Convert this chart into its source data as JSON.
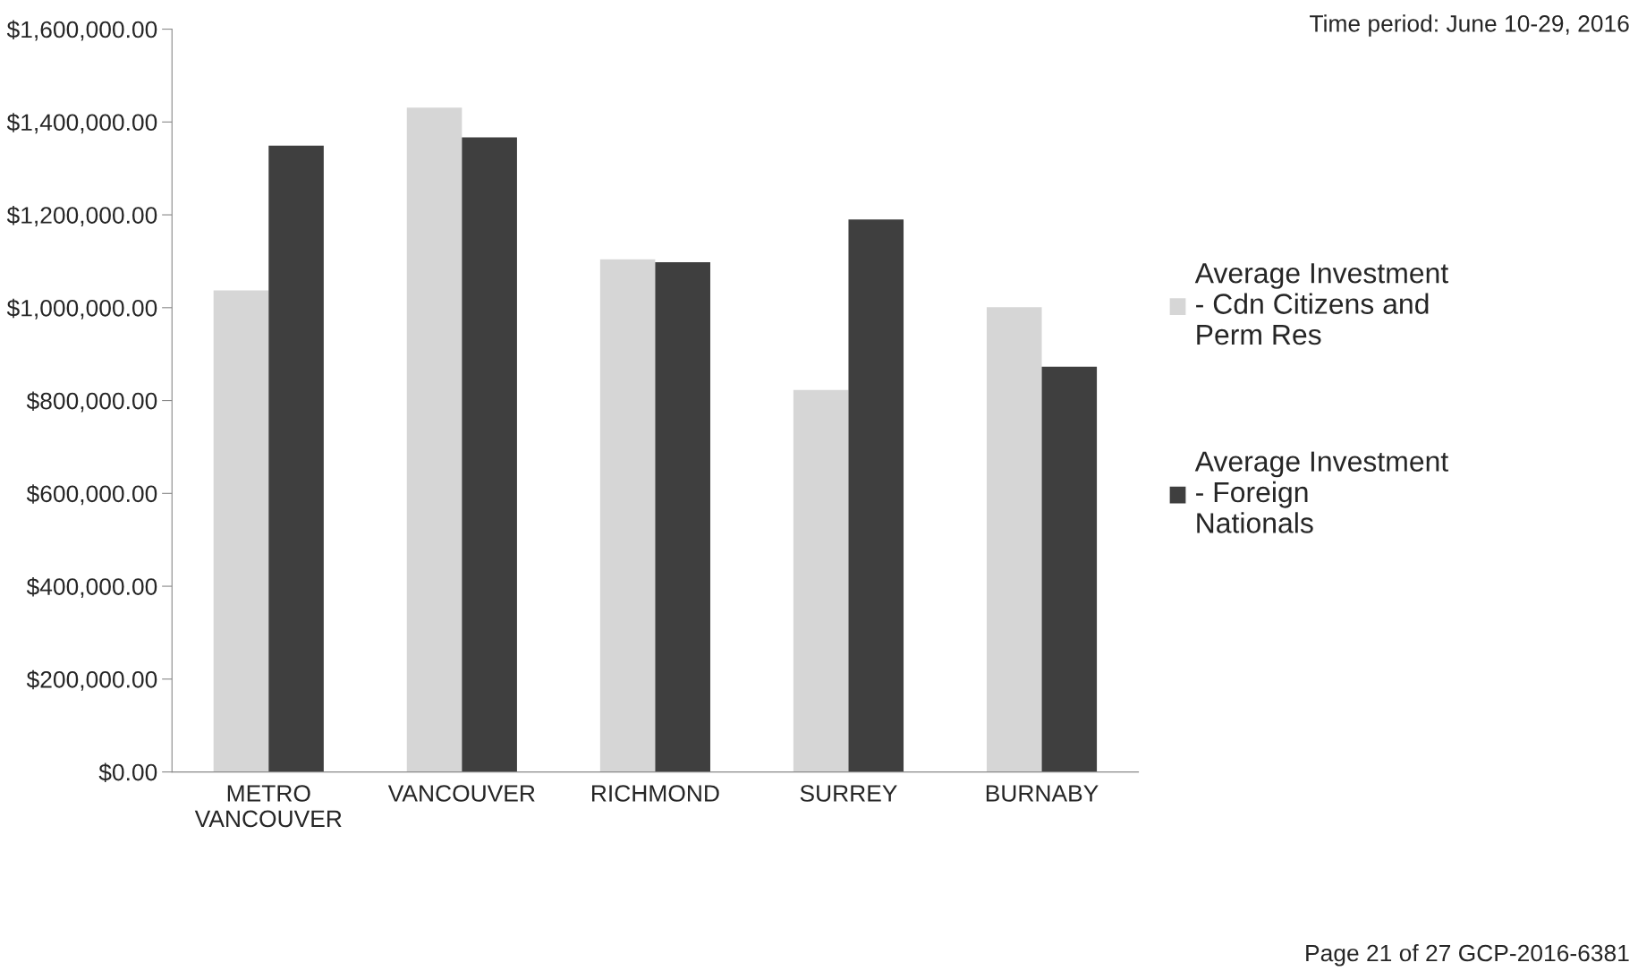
{
  "chart_data": {
    "type": "bar",
    "categories": [
      "METRO\nVANCOUVER",
      "VANCOUVER",
      "RICHMOND",
      "SURREY",
      "BURNABY"
    ],
    "series": [
      {
        "name": "Average Investment - Cdn Citizens and Perm Res",
        "color": "#d6d6d6",
        "values": [
          1037000,
          1431000,
          1104000,
          823000,
          1001000
        ]
      },
      {
        "name": "Average Investment - Foreign Nationals",
        "color": "#3f3f3f",
        "values": [
          1349000,
          1367000,
          1098000,
          1190000,
          873000
        ]
      }
    ],
    "ylim": [
      0,
      1600000
    ],
    "yticks": [
      {
        "value": 0,
        "label": "$0.00"
      },
      {
        "value": 200000,
        "label": "$200,000.00"
      },
      {
        "value": 400000,
        "label": "$400,000.00"
      },
      {
        "value": 600000,
        "label": "$600,000.00"
      },
      {
        "value": 800000,
        "label": "$800,000.00"
      },
      {
        "value": 1000000,
        "label": "$1,000,000.00"
      },
      {
        "value": 1200000,
        "label": "$1,200,000.00"
      },
      {
        "value": 1400000,
        "label": "$1,400,000.00"
      },
      {
        "value": 1600000,
        "label": "$1,600,000.00"
      }
    ],
    "grid": false,
    "legend": "right",
    "annotations": [
      "Time period: June 10-29, 2016",
      "Page 21 of 27 GCP-2016-6381"
    ]
  }
}
